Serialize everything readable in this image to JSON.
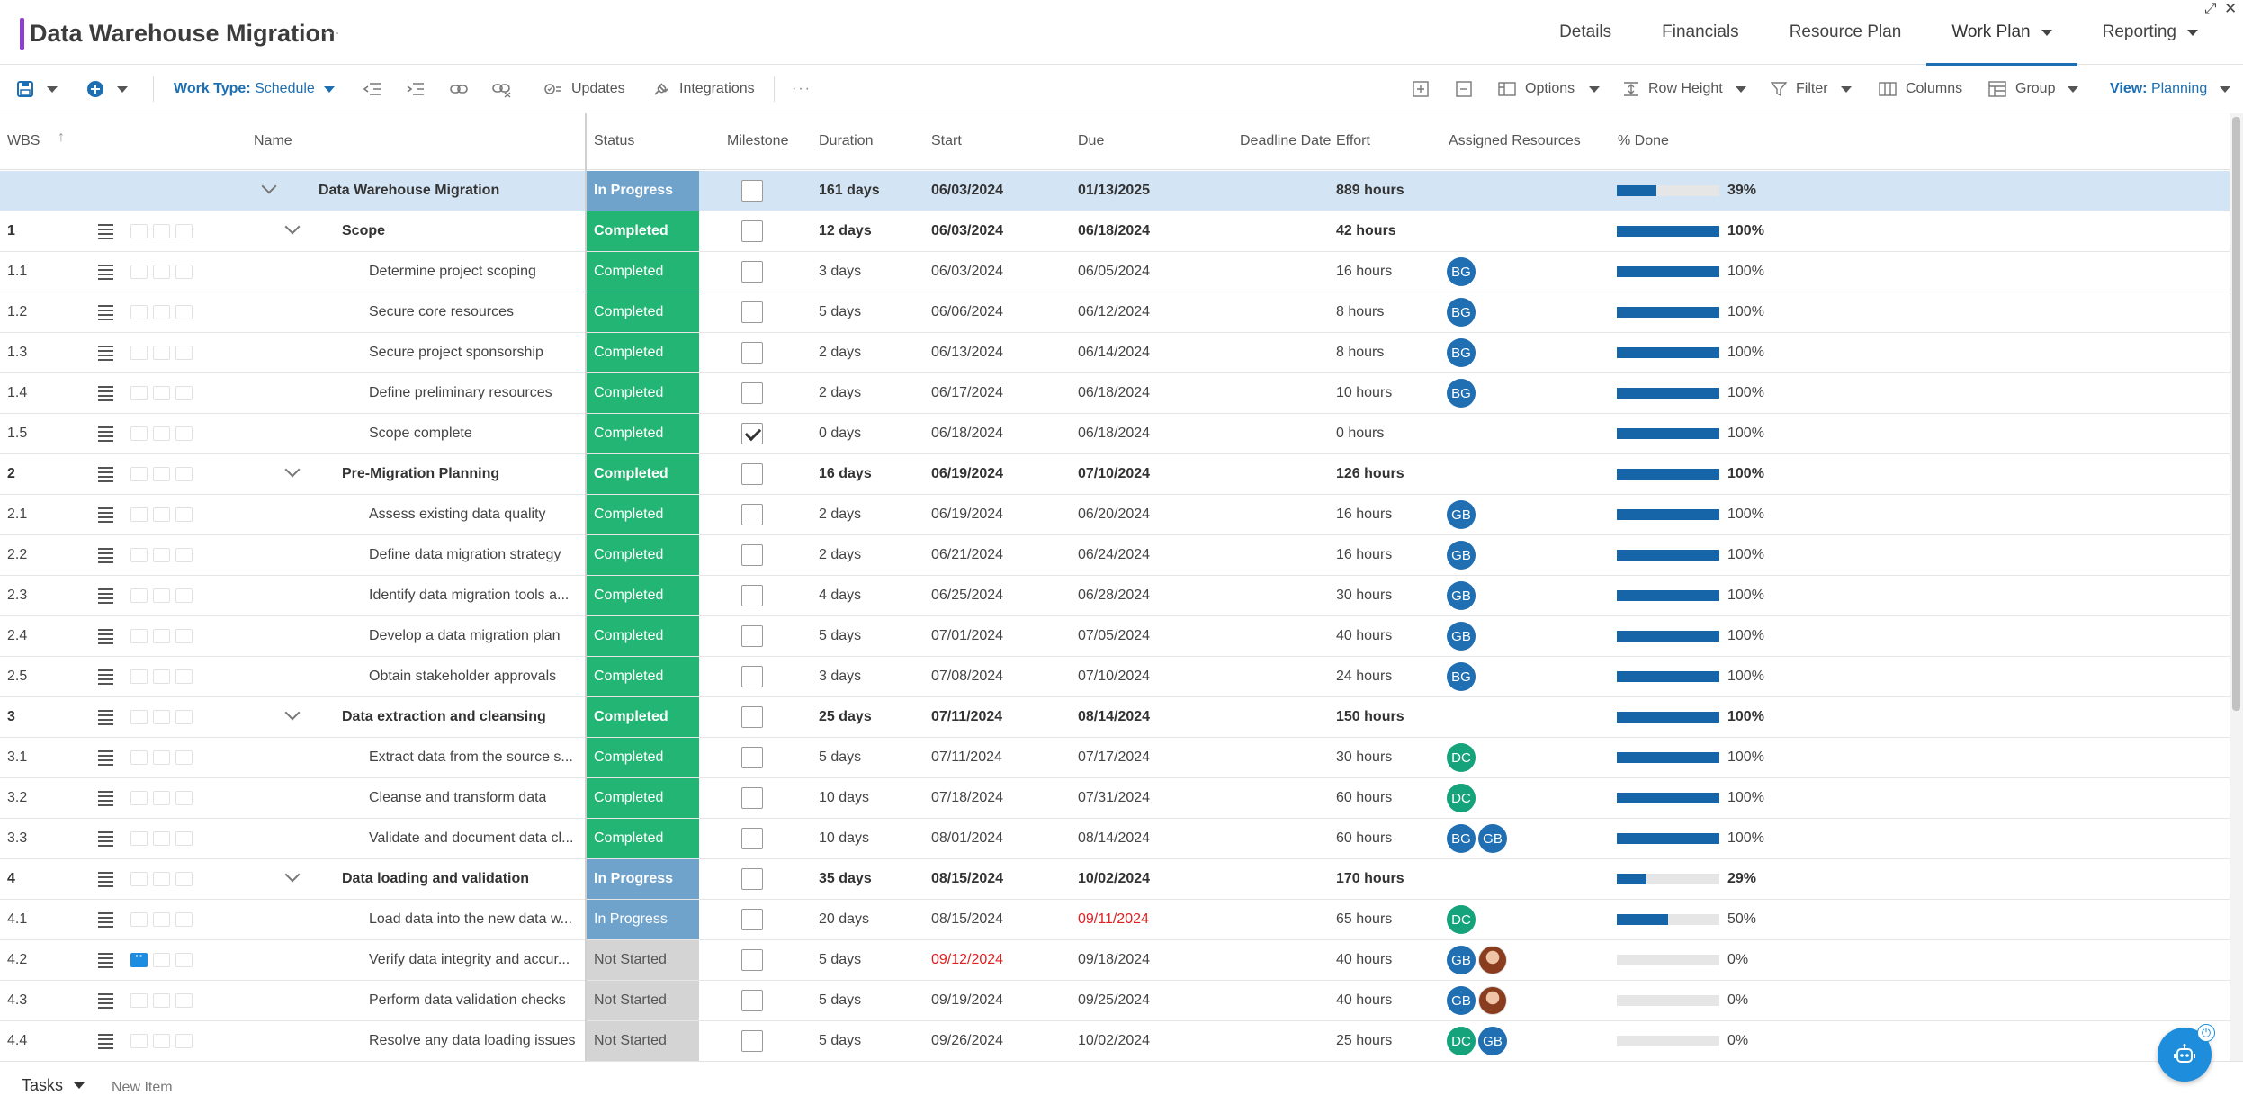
{
  "app": {
    "title": "Data Warehouse Migration",
    "title_more": "···",
    "restore_glyph": "⤢",
    "close_glyph": "✕"
  },
  "nav": {
    "tabs": [
      {
        "label": "Details"
      },
      {
        "label": "Financials"
      },
      {
        "label": "Resource Plan"
      },
      {
        "label": "Work Plan",
        "active": true
      },
      {
        "label": "Reporting"
      }
    ]
  },
  "toolbar": {
    "work_type_label": "Work Type:",
    "work_type_value": "Schedule",
    "updates": "Updates",
    "integrations": "Integrations",
    "more": "···",
    "options": "Options",
    "row_height": "Row Height",
    "filter": "Filter",
    "columns": "Columns",
    "group": "Group",
    "view_label": "View:",
    "view_value": "Planning"
  },
  "columns": {
    "wbs": "WBS",
    "name": "Name",
    "status": "Status",
    "milestone": "Milestone",
    "duration": "Duration",
    "start": "Start",
    "due": "Due",
    "deadline": "Deadline Date",
    "effort": "Effort",
    "resources": "Assigned Resources",
    "done": "% Done"
  },
  "rows": [
    {
      "wbs": "",
      "name": "Data Warehouse Migration",
      "level": 0,
      "summary": true,
      "selected": true,
      "status": "In Progress",
      "milestone": false,
      "duration": "161 days",
      "start": "06/03/2024",
      "due": "01/13/2025",
      "effort": "889 hours",
      "resources": [],
      "pct": 39,
      "pct_label": "39%"
    },
    {
      "wbs": "1",
      "name": "Scope",
      "level": 1,
      "summary": true,
      "status": "Completed",
      "milestone": false,
      "duration": "12 days",
      "start": "06/03/2024",
      "due": "06/18/2024",
      "effort": "42 hours",
      "resources": [],
      "pct": 100,
      "pct_label": "100%"
    },
    {
      "wbs": "1.1",
      "name": "Determine project scoping",
      "level": 2,
      "status": "Completed",
      "milestone": false,
      "duration": "3 days",
      "start": "06/03/2024",
      "due": "06/05/2024",
      "effort": "16 hours",
      "resources": [
        "BG"
      ],
      "pct": 100,
      "pct_label": "100%"
    },
    {
      "wbs": "1.2",
      "name": "Secure core resources",
      "level": 2,
      "status": "Completed",
      "milestone": false,
      "duration": "5 days",
      "start": "06/06/2024",
      "due": "06/12/2024",
      "effort": "8 hours",
      "resources": [
        "BG"
      ],
      "pct": 100,
      "pct_label": "100%"
    },
    {
      "wbs": "1.3",
      "name": "Secure project sponsorship",
      "level": 2,
      "status": "Completed",
      "milestone": false,
      "duration": "2 days",
      "start": "06/13/2024",
      "due": "06/14/2024",
      "effort": "8 hours",
      "resources": [
        "BG"
      ],
      "pct": 100,
      "pct_label": "100%"
    },
    {
      "wbs": "1.4",
      "name": "Define preliminary resources",
      "level": 2,
      "status": "Completed",
      "milestone": false,
      "duration": "2 days",
      "start": "06/17/2024",
      "due": "06/18/2024",
      "effort": "10 hours",
      "resources": [
        "BG"
      ],
      "pct": 100,
      "pct_label": "100%"
    },
    {
      "wbs": "1.5",
      "name": "Scope complete",
      "level": 2,
      "status": "Completed",
      "milestone": true,
      "duration": "0 days",
      "start": "06/18/2024",
      "due": "06/18/2024",
      "effort": "0 hours",
      "resources": [],
      "pct": 100,
      "pct_label": "100%"
    },
    {
      "wbs": "2",
      "name": "Pre-Migration Planning",
      "level": 1,
      "summary": true,
      "status": "Completed",
      "milestone": false,
      "duration": "16 days",
      "start": "06/19/2024",
      "due": "07/10/2024",
      "effort": "126 hours",
      "resources": [],
      "pct": 100,
      "pct_label": "100%"
    },
    {
      "wbs": "2.1",
      "name": "Assess existing data quality",
      "level": 2,
      "status": "Completed",
      "milestone": false,
      "duration": "2 days",
      "start": "06/19/2024",
      "due": "06/20/2024",
      "effort": "16 hours",
      "resources": [
        "GB"
      ],
      "pct": 100,
      "pct_label": "100%"
    },
    {
      "wbs": "2.2",
      "name": "Define data migration strategy",
      "level": 2,
      "status": "Completed",
      "milestone": false,
      "duration": "2 days",
      "start": "06/21/2024",
      "due": "06/24/2024",
      "effort": "16 hours",
      "resources": [
        "GB"
      ],
      "pct": 100,
      "pct_label": "100%"
    },
    {
      "wbs": "2.3",
      "name": "Identify data migration tools a...",
      "level": 2,
      "status": "Completed",
      "milestone": false,
      "duration": "4 days",
      "start": "06/25/2024",
      "due": "06/28/2024",
      "effort": "30 hours",
      "resources": [
        "GB"
      ],
      "pct": 100,
      "pct_label": "100%"
    },
    {
      "wbs": "2.4",
      "name": "Develop a data migration plan",
      "level": 2,
      "status": "Completed",
      "milestone": false,
      "duration": "5 days",
      "start": "07/01/2024",
      "due": "07/05/2024",
      "effort": "40 hours",
      "resources": [
        "GB"
      ],
      "pct": 100,
      "pct_label": "100%"
    },
    {
      "wbs": "2.5",
      "name": "Obtain stakeholder approvals",
      "level": 2,
      "status": "Completed",
      "milestone": false,
      "duration": "3 days",
      "start": "07/08/2024",
      "due": "07/10/2024",
      "effort": "24 hours",
      "resources": [
        "BG"
      ],
      "pct": 100,
      "pct_label": "100%"
    },
    {
      "wbs": "3",
      "name": "Data extraction and cleansing",
      "level": 1,
      "summary": true,
      "status": "Completed",
      "milestone": false,
      "duration": "25 days",
      "start": "07/11/2024",
      "due": "08/14/2024",
      "effort": "150 hours",
      "resources": [],
      "pct": 100,
      "pct_label": "100%"
    },
    {
      "wbs": "3.1",
      "name": "Extract data from the source s...",
      "level": 2,
      "status": "Completed",
      "milestone": false,
      "duration": "5 days",
      "start": "07/11/2024",
      "due": "07/17/2024",
      "effort": "30 hours",
      "resources": [
        "DC"
      ],
      "pct": 100,
      "pct_label": "100%"
    },
    {
      "wbs": "3.2",
      "name": "Cleanse and transform data",
      "level": 2,
      "status": "Completed",
      "milestone": false,
      "duration": "10 days",
      "start": "07/18/2024",
      "due": "07/31/2024",
      "effort": "60 hours",
      "resources": [
        "DC"
      ],
      "pct": 100,
      "pct_label": "100%"
    },
    {
      "wbs": "3.3",
      "name": "Validate and document data cl...",
      "level": 2,
      "status": "Completed",
      "milestone": false,
      "duration": "10 days",
      "start": "08/01/2024",
      "due": "08/14/2024",
      "effort": "60 hours",
      "resources": [
        "BG",
        "GB"
      ],
      "pct": 100,
      "pct_label": "100%"
    },
    {
      "wbs": "4",
      "name": "Data loading and validation",
      "level": 1,
      "summary": true,
      "status": "In Progress",
      "milestone": false,
      "duration": "35 days",
      "start": "08/15/2024",
      "due": "10/02/2024",
      "effort": "170 hours",
      "resources": [],
      "pct": 29,
      "pct_label": "29%"
    },
    {
      "wbs": "4.1",
      "name": "Load data into the new data w...",
      "level": 2,
      "status": "In Progress",
      "milestone": false,
      "duration": "20 days",
      "start": "08/15/2024",
      "due": "09/11/2024",
      "due_late": true,
      "effort": "65 hours",
      "resources": [
        "DC"
      ],
      "pct": 50,
      "pct_label": "50%"
    },
    {
      "wbs": "4.2",
      "name": "Verify data integrity and accur...",
      "level": 2,
      "status": "Not Started",
      "milestone": false,
      "duration": "5 days",
      "start": "09/12/2024",
      "start_late": true,
      "due": "09/18/2024",
      "effort": "40 hours",
      "resources": [
        "GB",
        "photo"
      ],
      "pct": 0,
      "pct_label": "0%",
      "has_comment": true
    },
    {
      "wbs": "4.3",
      "name": "Perform data validation checks",
      "level": 2,
      "status": "Not Started",
      "milestone": false,
      "duration": "5 days",
      "start": "09/19/2024",
      "due": "09/25/2024",
      "effort": "40 hours",
      "resources": [
        "GB",
        "photo"
      ],
      "pct": 0,
      "pct_label": "0%"
    },
    {
      "wbs": "4.4",
      "name": "Resolve any data loading issues",
      "level": 2,
      "status": "Not Started",
      "milestone": false,
      "duration": "5 days",
      "start": "09/26/2024",
      "due": "10/02/2024",
      "effort": "25 hours",
      "resources": [
        "DC",
        "GB"
      ],
      "pct": 0,
      "pct_label": "0%"
    }
  ],
  "bottom": {
    "tasks_tab": "Tasks",
    "new_item": "New Item"
  },
  "colors": {
    "completed": "#22b573",
    "in_progress": "#6fa3cc",
    "not_started": "#d4d4d4",
    "accent": "#1c6fb3",
    "progress_fill": "#1565a8",
    "late_date": "#e02020"
  },
  "icons": {
    "save": "save-icon",
    "add": "plus-circle-icon",
    "outdent": "outdent-icon",
    "indent": "indent-icon",
    "link": "link-icon",
    "unlink": "unlink-icon",
    "expand_all": "expand-all-icon",
    "collapse_all": "collapse-all-icon",
    "assistant": "robot-icon",
    "assistant_power": "power-icon"
  }
}
